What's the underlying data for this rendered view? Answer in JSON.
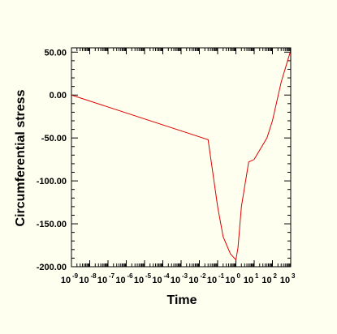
{
  "chart_data": {
    "type": "line",
    "title": "",
    "xlabel": "Time",
    "ylabel": "Circumferential stress",
    "x_scale": "log",
    "xlim": [
      1e-09,
      1000
    ],
    "ylim": [
      -200,
      55
    ],
    "x_ticks": [
      {
        "value": 1e-09,
        "label": "10",
        "exp": "-9"
      },
      {
        "value": 1e-08,
        "label": "10",
        "exp": "-8"
      },
      {
        "value": 1e-07,
        "label": "10",
        "exp": "-7"
      },
      {
        "value": 1e-06,
        "label": "10",
        "exp": "-6"
      },
      {
        "value": 1e-05,
        "label": "10",
        "exp": "-5"
      },
      {
        "value": 0.0001,
        "label": "10",
        "exp": "-4"
      },
      {
        "value": 0.001,
        "label": "10",
        "exp": "-3"
      },
      {
        "value": 0.01,
        "label": "10",
        "exp": "-2"
      },
      {
        "value": 0.1,
        "label": "10",
        "exp": "-1"
      },
      {
        "value": 1,
        "label": "10",
        "exp": "0"
      },
      {
        "value": 10,
        "label": "10",
        "exp": "1"
      },
      {
        "value": 100,
        "label": "10",
        "exp": "2"
      },
      {
        "value": 1000,
        "label": "10",
        "exp": "3"
      }
    ],
    "y_ticks": [
      {
        "value": 50,
        "label": "50.00"
      },
      {
        "value": 0,
        "label": "0.00"
      },
      {
        "value": -50,
        "label": "-50.00"
      },
      {
        "value": -100,
        "label": "-100.00"
      },
      {
        "value": -150,
        "label": "-150.00"
      },
      {
        "value": -200,
        "label": "-200.00"
      }
    ],
    "grid": false,
    "series": [
      {
        "color": "#dd0000",
        "x": [
          1e-09,
          0.03,
          0.05,
          0.1,
          0.2,
          0.5,
          1.0,
          1.3,
          2,
          5,
          10,
          50,
          100,
          300,
          1000
        ],
        "y": [
          0,
          -52,
          -85,
          -130,
          -165,
          -185,
          -192,
          -178,
          -130,
          -78,
          -75,
          -50,
          -30,
          15,
          52
        ]
      }
    ]
  }
}
